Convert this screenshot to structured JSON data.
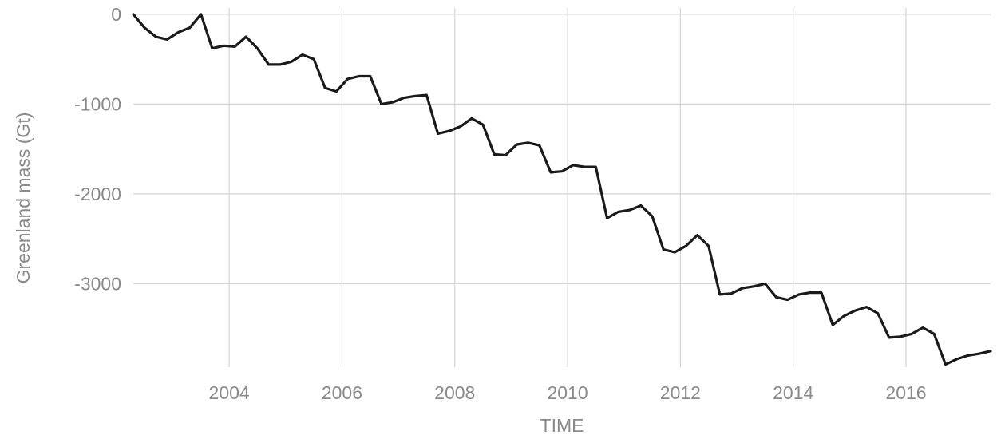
{
  "chart_data": {
    "type": "line",
    "xlabel": "TIME",
    "ylabel": "Greenland mass (Gt)",
    "xlim": [
      2002.3,
      2017.5
    ],
    "ylim": [
      -3930,
      70
    ],
    "xticks": [
      2004,
      2006,
      2008,
      2010,
      2012,
      2014,
      2016
    ],
    "yticks": [
      0,
      -1000,
      -2000,
      -3000
    ],
    "grid": true,
    "colors": {
      "line": "#1a1a1a",
      "grid": "#d3d3d3",
      "text": "#8a8a8a"
    },
    "series": [
      {
        "x": [
          2002.3,
          2002.5,
          2002.7,
          2002.9,
          2003.1,
          2003.3,
          2003.5,
          2003.7,
          2003.9,
          2004.1,
          2004.3,
          2004.5,
          2004.7,
          2004.9,
          2005.1,
          2005.3,
          2005.5,
          2005.7,
          2005.9,
          2006.1,
          2006.3,
          2006.5,
          2006.7,
          2006.9,
          2007.1,
          2007.3,
          2007.5,
          2007.7,
          2007.9,
          2008.1,
          2008.3,
          2008.5,
          2008.7,
          2008.9,
          2009.1,
          2009.3,
          2009.5,
          2009.7,
          2009.9,
          2010.1,
          2010.3,
          2010.5,
          2010.7,
          2010.9,
          2011.1,
          2011.3,
          2011.5,
          2011.7,
          2011.9,
          2012.1,
          2012.3,
          2012.5,
          2012.7,
          2012.9,
          2013.1,
          2013.3,
          2013.5,
          2013.7,
          2013.9,
          2014.1,
          2014.3,
          2014.5,
          2014.7,
          2014.9,
          2015.1,
          2015.3,
          2015.5,
          2015.7,
          2015.9,
          2016.1,
          2016.3,
          2016.5,
          2016.7,
          2016.9,
          2017.1,
          2017.3,
          2017.5
        ],
        "y": [
          0,
          -150,
          -250,
          -280,
          -200,
          -150,
          0,
          -380,
          -350,
          -360,
          -250,
          -380,
          -560,
          -560,
          -530,
          -450,
          -500,
          -820,
          -860,
          -720,
          -690,
          -690,
          -1000,
          -980,
          -930,
          -910,
          -900,
          -1330,
          -1300,
          -1250,
          -1160,
          -1230,
          -1560,
          -1570,
          -1450,
          -1430,
          -1460,
          -1760,
          -1750,
          -1680,
          -1700,
          -1700,
          -2270,
          -2200,
          -2180,
          -2130,
          -2250,
          -2620,
          -2650,
          -2580,
          -2460,
          -2580,
          -3120,
          -3110,
          -3050,
          -3030,
          -3000,
          -3150,
          -3180,
          -3120,
          -3100,
          -3100,
          -3460,
          -3360,
          -3300,
          -3260,
          -3330,
          -3600,
          -3590,
          -3560,
          -3490,
          -3560,
          -3900,
          -3840,
          -3800,
          -3780,
          -3750
        ]
      }
    ]
  }
}
